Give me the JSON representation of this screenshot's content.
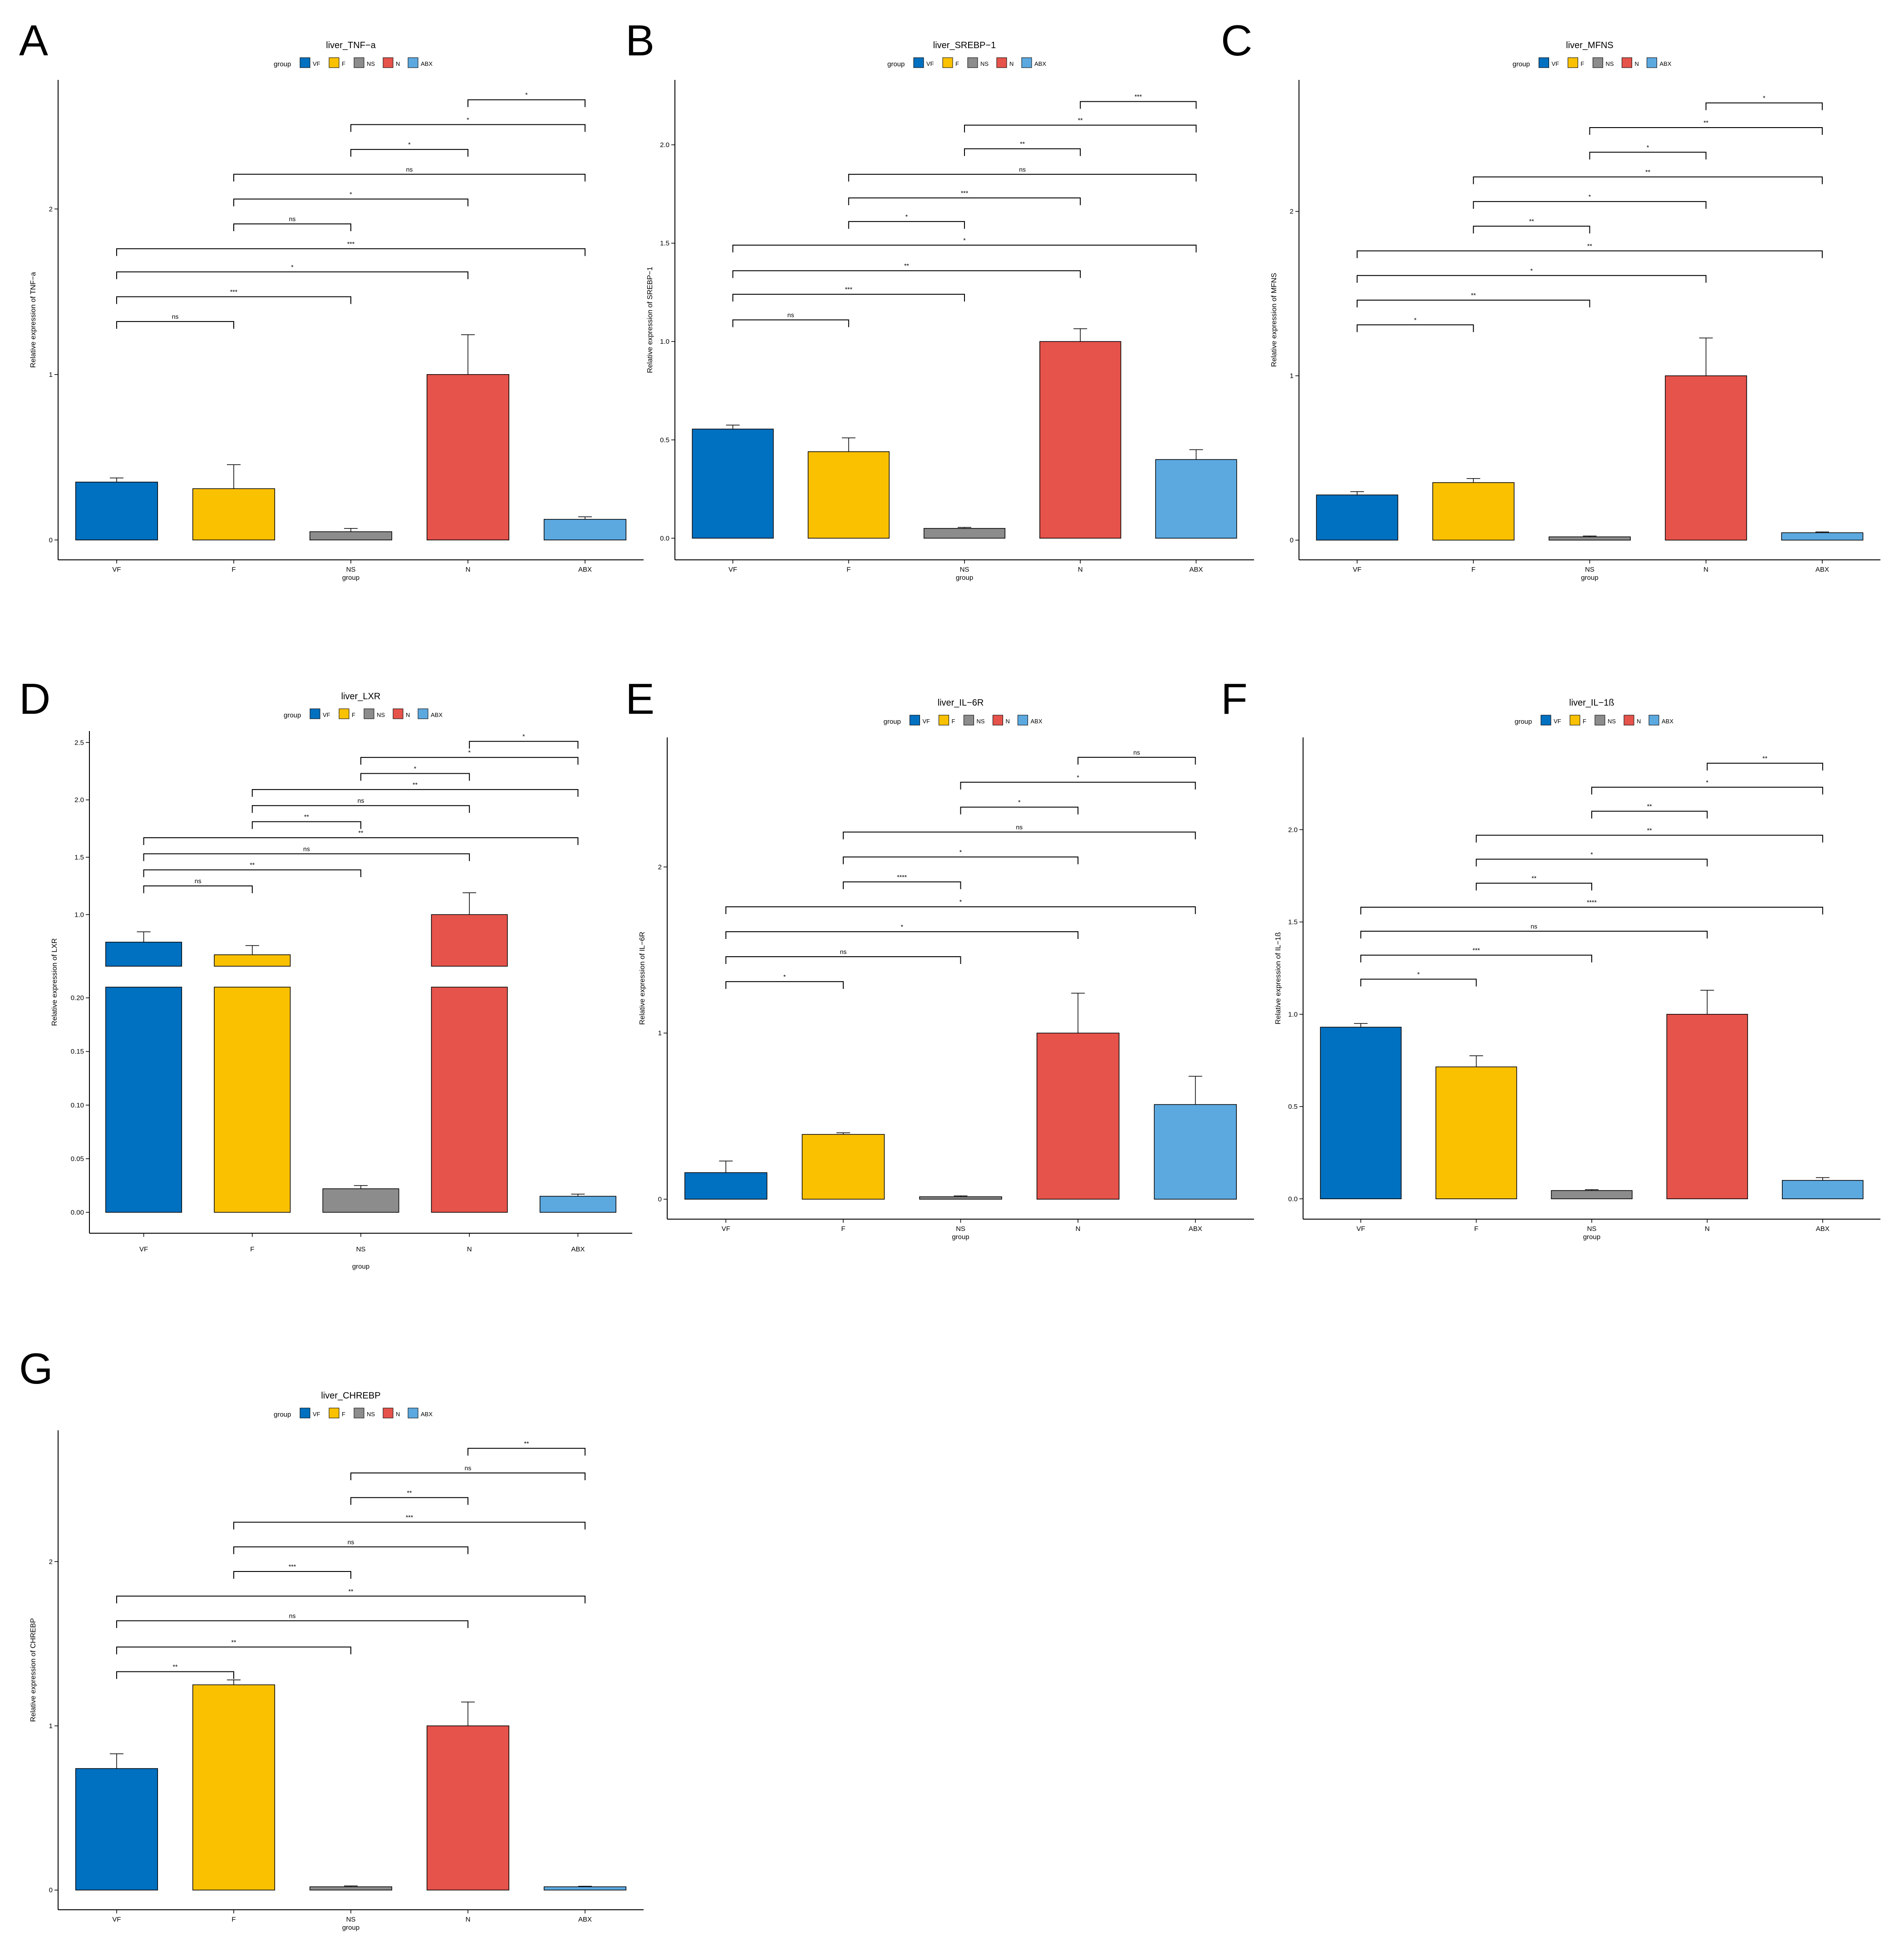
{
  "figure": {
    "group_label": "group",
    "legend_title": "group",
    "groups": [
      "VF",
      "F",
      "NS",
      "N",
      "ABX"
    ],
    "group_colors": [
      "#0070C0",
      "#FAC100",
      "#8C8C8C",
      "#E5534B",
      "#5CA9E0"
    ]
  },
  "chart_data": [
    {
      "panel": "A",
      "type": "bar",
      "title": "liver_TNF−a",
      "xlabel": "group",
      "ylabel": "Relative expression of TNF−a",
      "categories": [
        "VF",
        "F",
        "NS",
        "N",
        "ABX"
      ],
      "values": [
        0.35,
        0.31,
        0.05,
        1.0,
        0.125
      ],
      "errors": [
        0.025,
        0.145,
        0.02,
        0.24,
        0.015
      ],
      "ylim": [
        -0.12,
        2.78
      ],
      "yticks": [
        0,
        1,
        2
      ],
      "yticklabels": [
        "0",
        "1",
        "2"
      ],
      "comparisons": [
        {
          "from": 0,
          "to": 1,
          "y": 1.32,
          "label": "ns"
        },
        {
          "from": 0,
          "to": 2,
          "y": 1.47,
          "label": "***"
        },
        {
          "from": 0,
          "to": 3,
          "y": 1.62,
          "label": "*"
        },
        {
          "from": 0,
          "to": 4,
          "y": 1.76,
          "label": "***"
        },
        {
          "from": 1,
          "to": 2,
          "y": 1.91,
          "label": "ns"
        },
        {
          "from": 1,
          "to": 3,
          "y": 2.06,
          "label": "*"
        },
        {
          "from": 1,
          "to": 4,
          "y": 2.21,
          "label": "ns"
        },
        {
          "from": 2,
          "to": 3,
          "y": 2.36,
          "label": "*"
        },
        {
          "from": 2,
          "to": 4,
          "y": 2.51,
          "label": "*"
        },
        {
          "from": 3,
          "to": 4,
          "y": 2.66,
          "label": "*"
        }
      ]
    },
    {
      "panel": "B",
      "type": "bar",
      "title": "liver_SREBP−1",
      "xlabel": "group",
      "ylabel": "Relative expression of SREBP−1",
      "categories": [
        "VF",
        "F",
        "NS",
        "N",
        "ABX"
      ],
      "values": [
        0.555,
        0.44,
        0.05,
        1.0,
        0.4
      ],
      "errors": [
        0.02,
        0.07,
        0.005,
        0.065,
        0.05
      ],
      "ylim": [
        -0.11,
        2.33
      ],
      "yticks": [
        0,
        0.5,
        1.0,
        1.5,
        2.0
      ],
      "yticklabels": [
        "0.0",
        "0.5",
        "1.0",
        "1.5",
        "2.0"
      ],
      "comparisons": [
        {
          "from": 0,
          "to": 1,
          "y": 1.11,
          "label": "ns"
        },
        {
          "from": 0,
          "to": 2,
          "y": 1.24,
          "label": "***"
        },
        {
          "from": 0,
          "to": 3,
          "y": 1.36,
          "label": "**"
        },
        {
          "from": 0,
          "to": 4,
          "y": 1.49,
          "label": "*"
        },
        {
          "from": 1,
          "to": 2,
          "y": 1.61,
          "label": "*"
        },
        {
          "from": 1,
          "to": 3,
          "y": 1.73,
          "label": "***"
        },
        {
          "from": 1,
          "to": 4,
          "y": 1.85,
          "label": "ns"
        },
        {
          "from": 2,
          "to": 3,
          "y": 1.98,
          "label": "**"
        },
        {
          "from": 2,
          "to": 4,
          "y": 2.1,
          "label": "**"
        },
        {
          "from": 3,
          "to": 4,
          "y": 2.22,
          "label": "***"
        }
      ]
    },
    {
      "panel": "C",
      "type": "bar",
      "title": "liver_MFNS",
      "xlabel": "group",
      "ylabel": "Relative expression of MFNS",
      "categories": [
        "VF",
        "F",
        "NS",
        "N",
        "ABX"
      ],
      "values": [
        0.275,
        0.35,
        0.02,
        1.0,
        0.045
      ],
      "errors": [
        0.02,
        0.025,
        0.005,
        0.23,
        0.005
      ],
      "ylim": [
        -0.12,
        2.8
      ],
      "yticks": [
        0,
        1,
        2
      ],
      "yticklabels": [
        "0",
        "1",
        "2"
      ],
      "comparisons": [
        {
          "from": 0,
          "to": 1,
          "y": 1.31,
          "label": "*"
        },
        {
          "from": 0,
          "to": 2,
          "y": 1.46,
          "label": "**"
        },
        {
          "from": 0,
          "to": 3,
          "y": 1.61,
          "label": "*"
        },
        {
          "from": 0,
          "to": 4,
          "y": 1.76,
          "label": "**"
        },
        {
          "from": 1,
          "to": 2,
          "y": 1.91,
          "label": "**"
        },
        {
          "from": 1,
          "to": 3,
          "y": 2.06,
          "label": "*"
        },
        {
          "from": 1,
          "to": 4,
          "y": 2.21,
          "label": "**"
        },
        {
          "from": 2,
          "to": 3,
          "y": 2.36,
          "label": "*"
        },
        {
          "from": 2,
          "to": 4,
          "y": 2.51,
          "label": "**"
        },
        {
          "from": 3,
          "to": 4,
          "y": 2.66,
          "label": "*"
        }
      ]
    },
    {
      "panel": "D",
      "type": "bar",
      "title": "liver_LXR",
      "xlabel": "group",
      "ylabel": "Relative expression of LXR",
      "categories": [
        "VF",
        "F",
        "NS",
        "N",
        "ABX"
      ],
      "values": [
        0.76,
        0.65,
        0.022,
        1.0,
        0.015
      ],
      "errors": [
        0.09,
        0.08,
        0.003,
        0.19,
        0.002
      ],
      "axis_break": {
        "lower_range": [
          0,
          0.21
        ],
        "upper_range": [
          0.55,
          2.6
        ]
      },
      "yticks_lower": [
        0.0,
        0.05,
        0.1,
        0.15,
        0.2
      ],
      "yticklabels_lower": [
        "0.00",
        "0.05",
        "0.10",
        "0.15",
        "0.20"
      ],
      "yticks_upper": [
        1.0,
        1.5,
        2.0,
        2.5
      ],
      "yticklabels_upper": [
        "1.0",
        "1.5",
        "2.0",
        "2.5"
      ],
      "comparisons": [
        {
          "from": 0,
          "to": 1,
          "y": 1.25,
          "label": "ns"
        },
        {
          "from": 0,
          "to": 2,
          "y": 1.39,
          "label": "**"
        },
        {
          "from": 0,
          "to": 3,
          "y": 1.53,
          "label": "ns"
        },
        {
          "from": 0,
          "to": 4,
          "y": 1.67,
          "label": "**"
        },
        {
          "from": 1,
          "to": 2,
          "y": 1.81,
          "label": "**"
        },
        {
          "from": 1,
          "to": 3,
          "y": 1.95,
          "label": "ns"
        },
        {
          "from": 1,
          "to": 4,
          "y": 2.09,
          "label": "**"
        },
        {
          "from": 2,
          "to": 3,
          "y": 2.23,
          "label": "*"
        },
        {
          "from": 2,
          "to": 4,
          "y": 2.37,
          "label": "*"
        },
        {
          "from": 3,
          "to": 4,
          "y": 2.51,
          "label": "*"
        }
      ]
    },
    {
      "panel": "E",
      "type": "bar",
      "title": "liver_IL−6R",
      "xlabel": "group",
      "ylabel": "Relative expression of IL−6R",
      "categories": [
        "VF",
        "F",
        "NS",
        "N",
        "ABX"
      ],
      "values": [
        0.16,
        0.39,
        0.015,
        1.0,
        0.57
      ],
      "errors": [
        0.07,
        0.01,
        0.005,
        0.24,
        0.17
      ],
      "ylim": [
        -0.12,
        2.78
      ],
      "yticks": [
        0,
        1,
        2
      ],
      "yticklabels": [
        "0",
        "1",
        "2"
      ],
      "comparisons": [
        {
          "from": 0,
          "to": 1,
          "y": 1.31,
          "label": "*"
        },
        {
          "from": 0,
          "to": 2,
          "y": 1.46,
          "label": "ns"
        },
        {
          "from": 0,
          "to": 3,
          "y": 1.61,
          "label": "*"
        },
        {
          "from": 0,
          "to": 4,
          "y": 1.76,
          "label": "*"
        },
        {
          "from": 1,
          "to": 2,
          "y": 1.91,
          "label": "****"
        },
        {
          "from": 1,
          "to": 3,
          "y": 2.06,
          "label": "*"
        },
        {
          "from": 1,
          "to": 4,
          "y": 2.21,
          "label": "ns"
        },
        {
          "from": 2,
          "to": 3,
          "y": 2.36,
          "label": "*"
        },
        {
          "from": 2,
          "to": 4,
          "y": 2.51,
          "label": "*"
        },
        {
          "from": 3,
          "to": 4,
          "y": 2.66,
          "label": "ns"
        }
      ]
    },
    {
      "panel": "F",
      "type": "bar",
      "title": "liver_IL−1ß",
      "xlabel": "group",
      "ylabel": "Relative expression of IL−1ß",
      "categories": [
        "VF",
        "F",
        "NS",
        "N",
        "ABX"
      ],
      "values": [
        0.93,
        0.715,
        0.045,
        1.0,
        0.1
      ],
      "errors": [
        0.02,
        0.06,
        0.005,
        0.13,
        0.015
      ],
      "ylim": [
        -0.11,
        2.5
      ],
      "yticks": [
        0,
        0.5,
        1.0,
        1.5,
        2.0
      ],
      "yticklabels": [
        "0.0",
        "0.5",
        "1.0",
        "1.5",
        "2.0"
      ],
      "comparisons": [
        {
          "from": 0,
          "to": 1,
          "y": 1.19,
          "label": "*"
        },
        {
          "from": 0,
          "to": 2,
          "y": 1.32,
          "label": "***"
        },
        {
          "from": 0,
          "to": 3,
          "y": 1.45,
          "label": "ns"
        },
        {
          "from": 0,
          "to": 4,
          "y": 1.58,
          "label": "****"
        },
        {
          "from": 1,
          "to": 2,
          "y": 1.71,
          "label": "**"
        },
        {
          "from": 1,
          "to": 3,
          "y": 1.84,
          "label": "*"
        },
        {
          "from": 1,
          "to": 4,
          "y": 1.97,
          "label": "**"
        },
        {
          "from": 2,
          "to": 3,
          "y": 2.1,
          "label": "**"
        },
        {
          "from": 2,
          "to": 4,
          "y": 2.23,
          "label": "*"
        },
        {
          "from": 3,
          "to": 4,
          "y": 2.36,
          "label": "**"
        }
      ]
    },
    {
      "panel": "G",
      "type": "bar",
      "title": "liver_CHREBP",
      "xlabel": "group",
      "ylabel": "Relative expression of CHREBP",
      "categories": [
        "VF",
        "F",
        "NS",
        "N",
        "ABX"
      ],
      "values": [
        0.74,
        1.25,
        0.02,
        1.0,
        0.02
      ],
      "errors": [
        0.09,
        0.03,
        0.005,
        0.145,
        0.003
      ],
      "ylim": [
        -0.12,
        2.8
      ],
      "yticks": [
        0,
        1,
        2
      ],
      "yticklabels": [
        "0",
        "1",
        "2"
      ],
      "comparisons": [
        {
          "from": 0,
          "to": 1,
          "y": 1.33,
          "label": "**"
        },
        {
          "from": 0,
          "to": 2,
          "y": 1.48,
          "label": "**"
        },
        {
          "from": 0,
          "to": 3,
          "y": 1.64,
          "label": "ns"
        },
        {
          "from": 0,
          "to": 4,
          "y": 1.79,
          "label": "**"
        },
        {
          "from": 1,
          "to": 2,
          "y": 1.94,
          "label": "***"
        },
        {
          "from": 1,
          "to": 3,
          "y": 2.09,
          "label": "ns"
        },
        {
          "from": 1,
          "to": 4,
          "y": 2.24,
          "label": "***"
        },
        {
          "from": 2,
          "to": 3,
          "y": 2.39,
          "label": "**"
        },
        {
          "from": 2,
          "to": 4,
          "y": 2.54,
          "label": "ns"
        },
        {
          "from": 3,
          "to": 4,
          "y": 2.69,
          "label": "**"
        }
      ]
    }
  ]
}
